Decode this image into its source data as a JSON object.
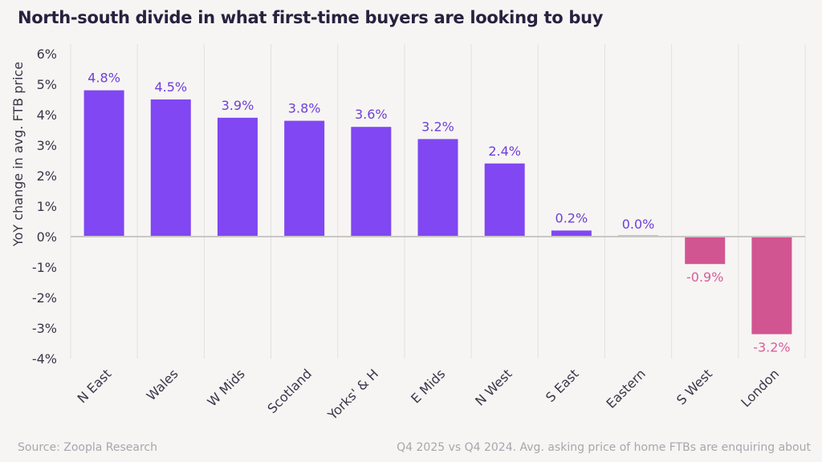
{
  "chart_data": {
    "type": "bar",
    "title": "North-south divide in what first-time buyers are looking to buy",
    "ylabel": "YoY change in avg. FTB price",
    "xlabel": "",
    "categories": [
      "N East",
      "Wales",
      "W Mids",
      "Scotland",
      "Yorks' & H",
      "E Mids",
      "N West",
      "S East",
      "Eastern",
      "S West",
      "London"
    ],
    "values": [
      4.8,
      4.5,
      3.9,
      3.8,
      3.6,
      3.2,
      2.4,
      0.2,
      0.0,
      -0.9,
      -3.2
    ],
    "data_labels": [
      "4.8%",
      "4.5%",
      "3.9%",
      "3.8%",
      "3.6%",
      "3.2%",
      "2.4%",
      "0.2%",
      "0.0%",
      "-0.9%",
      "-3.2%"
    ],
    "ylim": [
      -4,
      6
    ],
    "yticks": [
      6,
      5,
      4,
      3,
      2,
      1,
      0,
      -1,
      -2,
      -3,
      -4
    ],
    "ytick_labels": [
      "6%",
      "5%",
      "4%",
      "3%",
      "2%",
      "1%",
      "0%",
      "-1%",
      "-2%",
      "-3%",
      "-4%"
    ],
    "grid": "vertical",
    "colors": {
      "positive_bar": "#8047f2",
      "positive_label": "#6e3fd8",
      "negative_bar": "#d15591",
      "negative_label": "#d95c9b"
    }
  },
  "footer": {
    "source": "Source: Zoopla Research",
    "note": "Q4 2025 vs Q4 2024. Avg. asking price of home FTBs are enquiring about"
  }
}
